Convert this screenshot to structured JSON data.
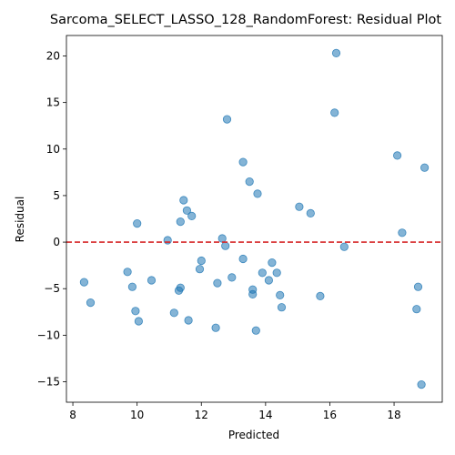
{
  "chart_data": {
    "type": "scatter",
    "title": "Sarcoma_SELECT_LASSO_128_RandomForest: Residual Plot",
    "xlabel": "Predicted",
    "ylabel": "Residual",
    "xlim": [
      7.8,
      19.5
    ],
    "ylim": [
      -17.2,
      22.2
    ],
    "xticks": [
      8,
      10,
      12,
      14,
      16,
      18
    ],
    "yticks": [
      -15,
      -10,
      -5,
      0,
      5,
      10,
      15,
      20
    ],
    "grid": false,
    "reference_line": {
      "y": 0,
      "style": "dashed",
      "color": "#d62728"
    },
    "point_color": "#1f77b4",
    "points": [
      [
        8.35,
        -4.3
      ],
      [
        8.55,
        -6.5
      ],
      [
        9.7,
        -3.2
      ],
      [
        9.85,
        -4.8
      ],
      [
        9.95,
        -7.4
      ],
      [
        10.0,
        2.0
      ],
      [
        10.05,
        -8.5
      ],
      [
        10.45,
        -4.1
      ],
      [
        10.95,
        0.2
      ],
      [
        11.15,
        -7.6
      ],
      [
        11.3,
        -5.2
      ],
      [
        11.35,
        2.2
      ],
      [
        11.35,
        -4.9
      ],
      [
        11.45,
        4.5
      ],
      [
        11.55,
        3.4
      ],
      [
        11.6,
        -8.4
      ],
      [
        11.7,
        2.8
      ],
      [
        11.95,
        -2.9
      ],
      [
        12.0,
        -2.0
      ],
      [
        12.45,
        -9.2
      ],
      [
        12.5,
        -4.4
      ],
      [
        12.65,
        0.4
      ],
      [
        12.75,
        -0.4
      ],
      [
        12.8,
        13.2
      ],
      [
        12.95,
        -3.8
      ],
      [
        13.3,
        -1.8
      ],
      [
        13.3,
        8.6
      ],
      [
        13.5,
        6.5
      ],
      [
        13.6,
        -5.1
      ],
      [
        13.6,
        -5.6
      ],
      [
        13.7,
        -9.5
      ],
      [
        13.75,
        5.2
      ],
      [
        13.9,
        -3.3
      ],
      [
        14.1,
        -4.1
      ],
      [
        14.2,
        -2.2
      ],
      [
        14.35,
        -3.3
      ],
      [
        14.45,
        -5.7
      ],
      [
        14.5,
        -7.0
      ],
      [
        15.05,
        3.8
      ],
      [
        15.4,
        3.1
      ],
      [
        15.7,
        -5.8
      ],
      [
        16.15,
        13.9
      ],
      [
        16.2,
        20.3
      ],
      [
        16.45,
        -0.5
      ],
      [
        18.1,
        9.3
      ],
      [
        18.25,
        1.0
      ],
      [
        18.7,
        -7.2
      ],
      [
        18.75,
        -4.8
      ],
      [
        18.85,
        -15.3
      ],
      [
        18.95,
        8.0
      ]
    ]
  }
}
